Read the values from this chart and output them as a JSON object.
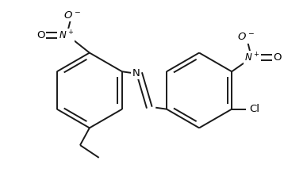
{
  "bg_color": "#ffffff",
  "line_color": "#1a1a1a",
  "text_color": "#000000",
  "line_width": 1.4,
  "figsize": [
    3.58,
    2.22
  ],
  "dpi": 100,
  "xlim": [
    0,
    358
  ],
  "ylim": [
    0,
    222
  ]
}
